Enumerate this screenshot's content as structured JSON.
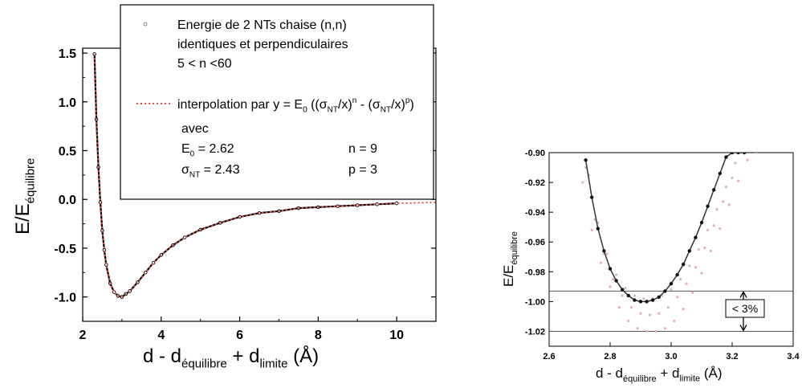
{
  "chart_data": [
    {
      "type": "line",
      "xlim": [
        2,
        11
      ],
      "ylim": [
        -1.25,
        1.55
      ],
      "xticks": [
        "2",
        "4",
        "6",
        "8",
        "10"
      ],
      "yticks": [
        "1.5",
        "1.0",
        "0.5",
        "0.0",
        "-0.5",
        "-1.0"
      ],
      "xlabel": {
        "main": "d - d",
        "sub1": "équilibre",
        "mid": " + d",
        "sub2": "limite",
        "unit": "(Å)"
      },
      "ylabel": {
        "main": "E/E",
        "sub": "équilibre"
      },
      "legend_position": "top",
      "model": {
        "E0": 2.62,
        "sigma_NT": 2.43,
        "n": 9,
        "p": 3
      },
      "series": [
        {
          "name": "Energie de 2 NTs chaise (n,n) identiques et perpendiculaires 5 < n <60",
          "style": "scatter",
          "color": "#000000",
          "x": [
            2.3,
            2.35,
            2.4,
            2.45,
            2.5,
            2.55,
            2.6,
            2.7,
            2.8,
            2.9,
            3.0,
            3.1,
            3.2,
            3.4,
            3.6,
            3.8,
            4.0,
            4.3,
            4.6,
            5.0,
            5.5,
            6.0,
            6.5,
            7.0,
            7.5,
            8.0,
            8.5,
            9.0,
            9.5,
            10.0
          ],
          "y": [
            1.49,
            0.82,
            0.33,
            -0.03,
            -0.32,
            -0.52,
            -0.67,
            -0.86,
            -0.95,
            -0.99,
            -1.0,
            -0.97,
            -0.94,
            -0.85,
            -0.75,
            -0.65,
            -0.57,
            -0.47,
            -0.39,
            -0.31,
            -0.24,
            -0.18,
            -0.14,
            -0.12,
            -0.09,
            -0.08,
            -0.07,
            -0.06,
            -0.05,
            -0.04
          ]
        },
        {
          "name": "interpolation par y = E0 ((σNT/x)n - (σNT/x)p)",
          "style": "dotted",
          "color": "#e8504a",
          "x": [
            2.3,
            2.35,
            2.4,
            2.45,
            2.5,
            2.55,
            2.6,
            2.7,
            2.8,
            2.9,
            3.0,
            3.1,
            3.2,
            3.4,
            3.6,
            3.8,
            4.0,
            4.3,
            4.6,
            5.0,
            5.5,
            6.0,
            6.5,
            7.0,
            7.5,
            8.0,
            8.5,
            9.0,
            9.5,
            10.0,
            10.5,
            11.0
          ],
          "y": [
            1.49,
            0.82,
            0.33,
            -0.03,
            -0.32,
            -0.52,
            -0.67,
            -0.86,
            -0.95,
            -0.99,
            -1.0,
            -0.97,
            -0.94,
            -0.85,
            -0.75,
            -0.65,
            -0.57,
            -0.47,
            -0.39,
            -0.31,
            -0.24,
            -0.18,
            -0.14,
            -0.12,
            -0.09,
            -0.08,
            -0.07,
            -0.06,
            -0.05,
            -0.04,
            -0.035,
            -0.03
          ]
        }
      ],
      "legend": {
        "l1": "Energie de 2 NTs chaise (n,n)",
        "l2": "identiques et perpendiculaires",
        "l3": "5 < n <60",
        "interp_prefix": "interpolation par y = E",
        "avec": "avec",
        "e0_label": "E",
        "e0_sub": "0",
        "e0_val": "= 2.62",
        "n_text": "n = 9",
        "sigma_label": "σ",
        "sigma_sub": "NT",
        "sigma_val": "= 2.43",
        "p_text": "p = 3"
      }
    },
    {
      "type": "scatter",
      "xlim": [
        2.6,
        3.4
      ],
      "ylim": [
        -1.03,
        -0.9
      ],
      "xticks": [
        "2.6",
        "2.8",
        "3.0",
        "3.2",
        "3.4"
      ],
      "yticks": [
        "-0.90",
        "-0.92",
        "-0.94",
        "-0.96",
        "-0.98",
        "-1.00",
        "-1.02"
      ],
      "xlabel": {
        "main": "d - d",
        "sub1": "équilibre",
        "mid": " + d",
        "sub2": "limite",
        "unit": "(Å)"
      },
      "ylabel": {
        "main": "E/E",
        "sub": "équilibre"
      },
      "hlines": [
        -0.993,
        -1.02
      ],
      "annotation": "< 3%",
      "series": [
        {
          "style": "markers",
          "color": "#000000",
          "x": [
            2.72,
            2.74,
            2.76,
            2.78,
            2.8,
            2.82,
            2.84,
            2.86,
            2.88,
            2.9,
            2.92,
            2.94,
            2.96,
            2.98,
            3.0,
            3.02,
            3.04,
            3.06,
            3.08,
            3.1,
            3.12,
            3.14,
            3.16,
            3.18,
            3.2,
            3.22,
            3.24
          ],
          "y": [
            -0.905,
            -0.93,
            -0.951,
            -0.966,
            -0.978,
            -0.986,
            -0.992,
            -0.996,
            -0.999,
            -1.0,
            -1.0,
            -0.999,
            -0.997,
            -0.993,
            -0.988,
            -0.982,
            -0.975,
            -0.966,
            -0.957,
            -0.947,
            -0.936,
            -0.925,
            -0.914,
            -0.903,
            -0.9,
            -0.9,
            -0.9
          ]
        },
        {
          "style": "light-dotted",
          "color": "#e2b0b6",
          "x": [
            2.71,
            2.74,
            2.77,
            2.8,
            2.83,
            2.86,
            2.89,
            2.92,
            2.95,
            2.98,
            3.01,
            3.04,
            3.07,
            3.1,
            3.13,
            3.16,
            3.19,
            3.22,
            3.25,
            3.28
          ],
          "y": [
            -0.92,
            -0.952,
            -0.974,
            -0.99,
            -1.004,
            -1.013,
            -1.018,
            -1.02,
            -1.02,
            -1.018,
            -1.013,
            -1.005,
            -0.994,
            -0.981,
            -0.966,
            -0.951,
            -0.935,
            -0.919,
            -0.905,
            -0.9
          ]
        },
        {
          "style": "light-dotted",
          "color": "#e2b0b6",
          "x": [
            2.72,
            2.75,
            2.78,
            2.81,
            2.84,
            2.87,
            2.9,
            2.93,
            2.96,
            2.99,
            3.02,
            3.05,
            3.08,
            3.11,
            3.14,
            3.17,
            3.2,
            3.23
          ],
          "y": [
            -0.91,
            -0.945,
            -0.968,
            -0.985,
            -0.996,
            -1.004,
            -1.008,
            -1.009,
            -1.008,
            -1.004,
            -0.997,
            -0.988,
            -0.977,
            -0.964,
            -0.949,
            -0.933,
            -0.917,
            -0.9
          ]
        },
        {
          "style": "light-dotted",
          "color": "#d8b4c8",
          "x": [
            2.73,
            2.76,
            2.79,
            2.82,
            2.85,
            2.88,
            2.91,
            2.94,
            2.97,
            3.0,
            3.03,
            3.06,
            3.09,
            3.12,
            3.15,
            3.18,
            3.21,
            3.24
          ],
          "y": [
            -0.915,
            -0.947,
            -0.968,
            -0.982,
            -0.991,
            -0.996,
            -0.998,
            -0.998,
            -0.996,
            -0.992,
            -0.985,
            -0.976,
            -0.965,
            -0.952,
            -0.938,
            -0.923,
            -0.907,
            -0.9
          ]
        }
      ]
    }
  ]
}
